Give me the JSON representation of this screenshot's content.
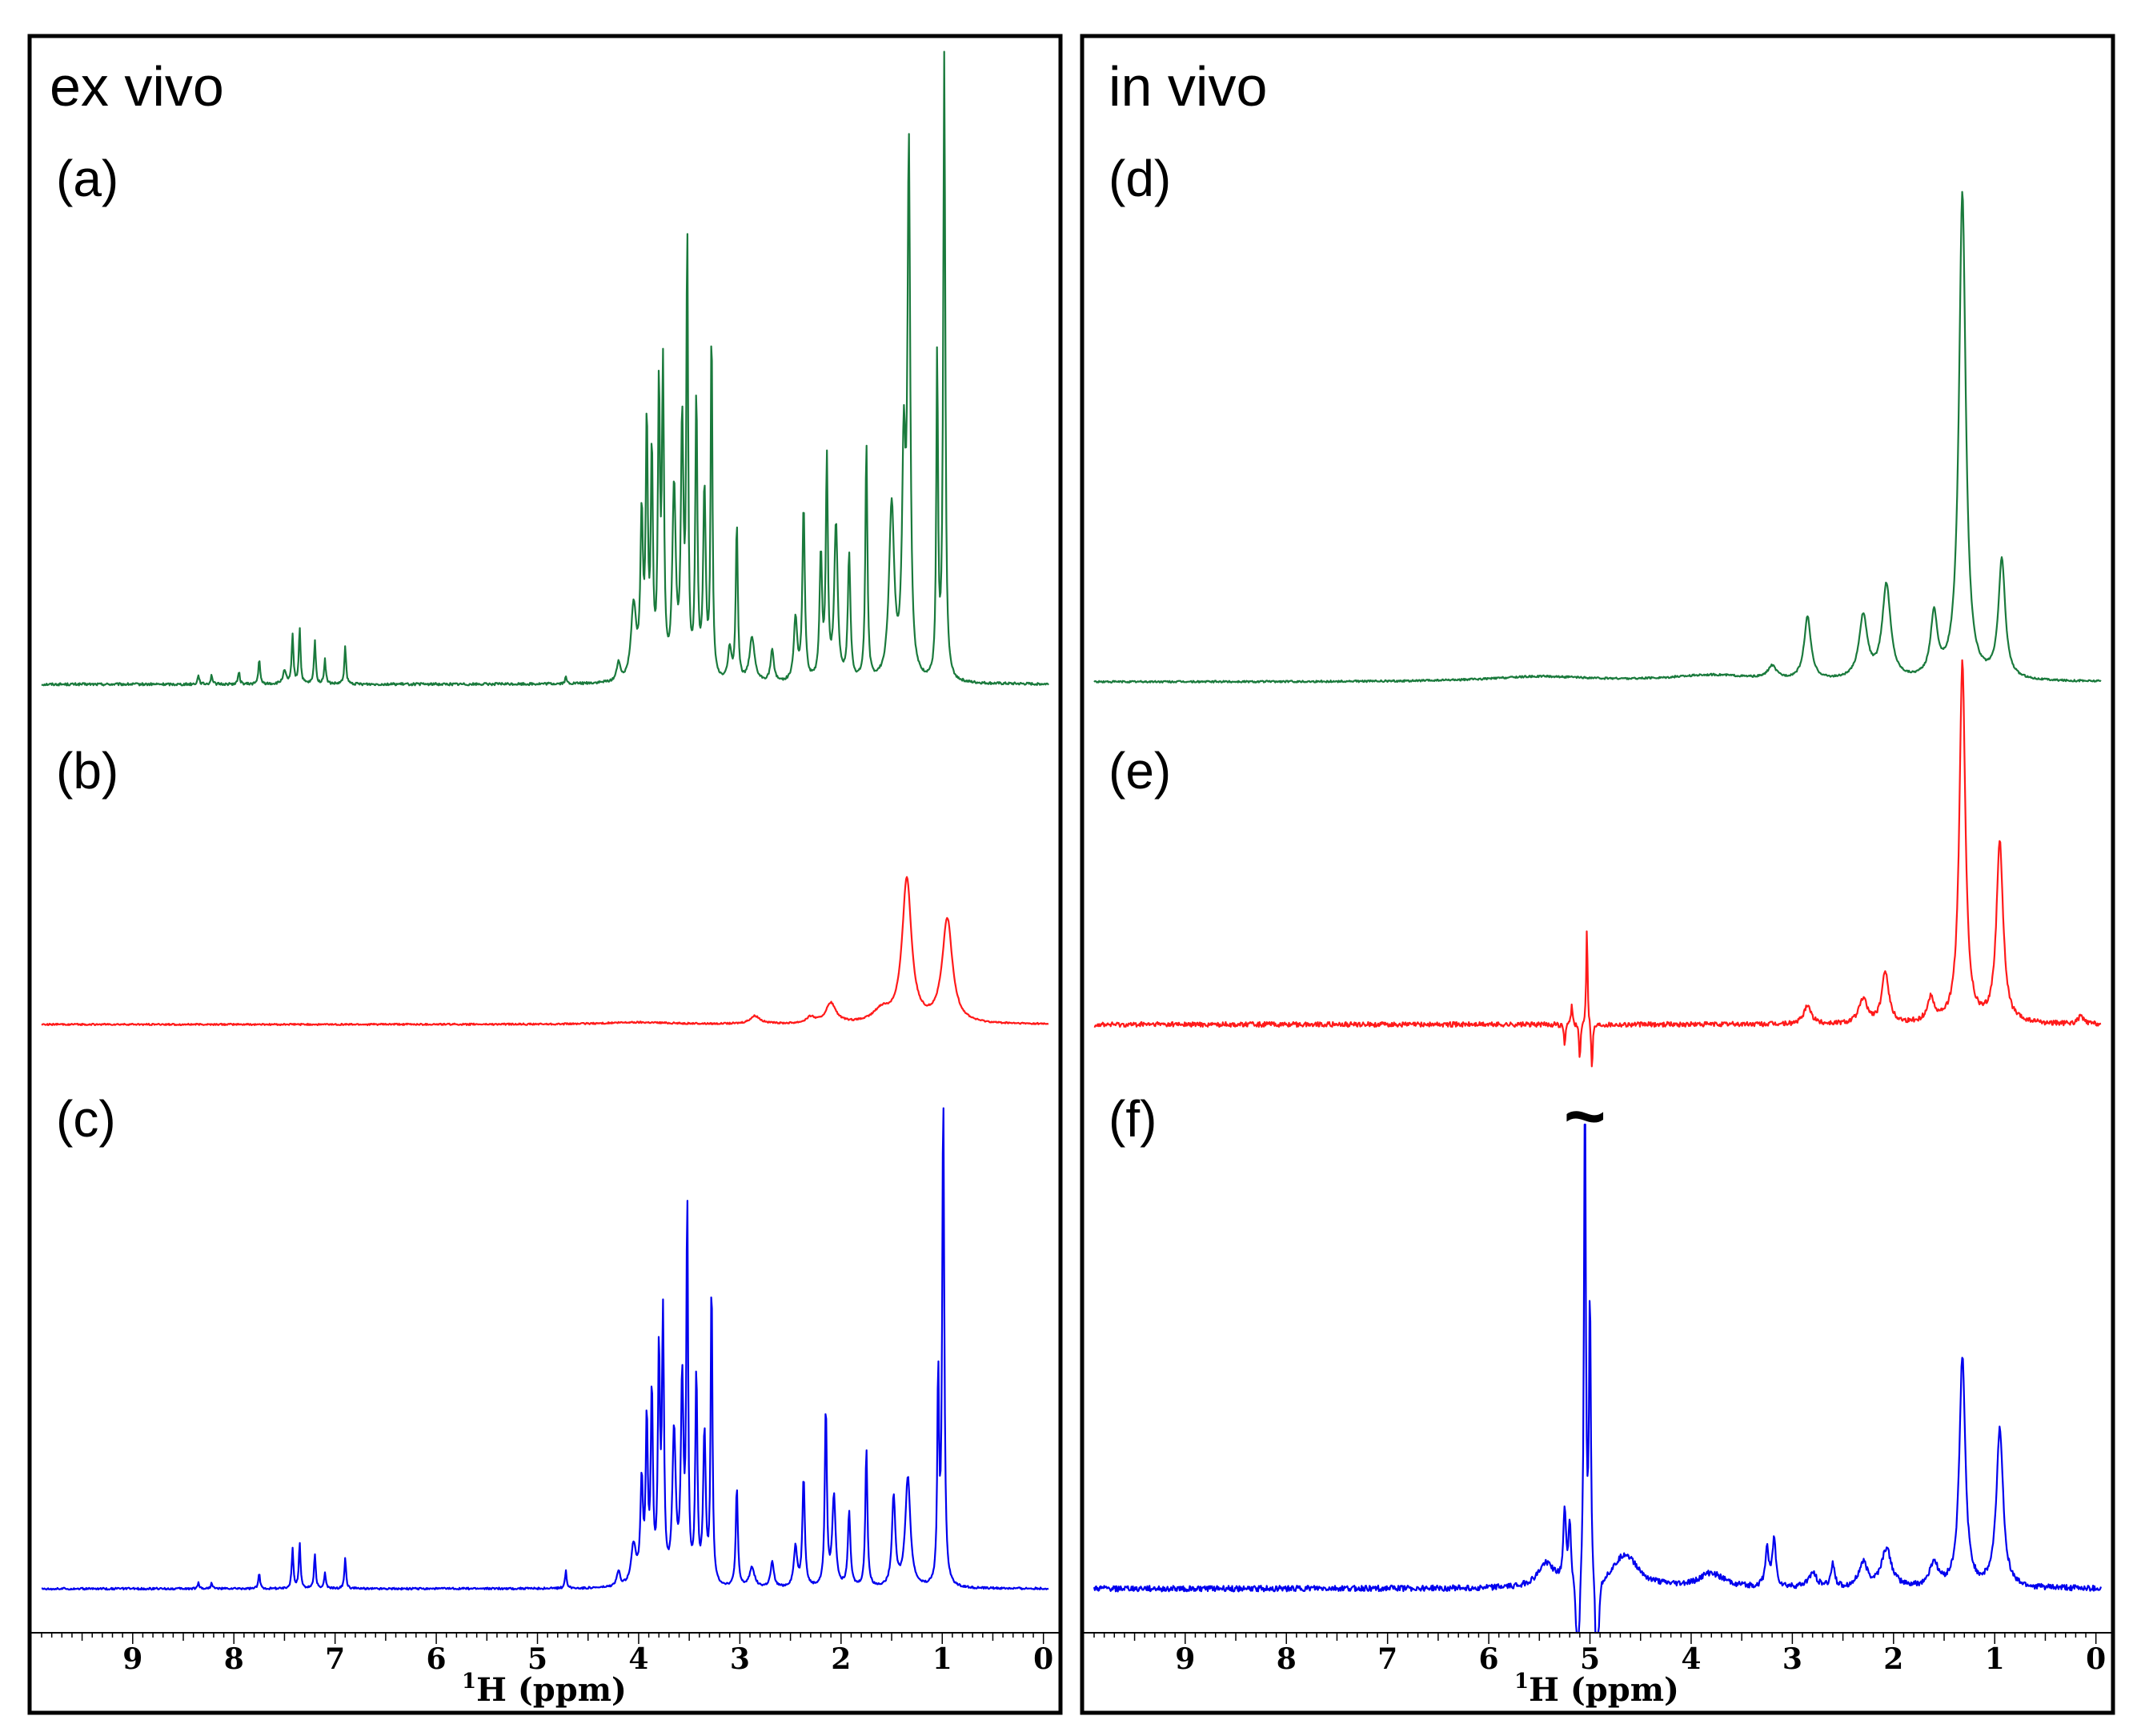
{
  "chart_data": [
    {
      "type": "line",
      "id": "left",
      "heading": "ex vivo",
      "xlabel_nucleus": "1",
      "xlabel_rest": "H (ppm)",
      "xlim": [
        9.9,
        -0.05
      ],
      "x_ticks": [
        "9",
        "8",
        "7",
        "6",
        "5",
        "4",
        "3",
        "2",
        "1",
        "0"
      ],
      "series": [
        {
          "id": "a",
          "label": "(a)",
          "color": "#1a7a3c",
          "noise": 0.002,
          "peaks": [
            [
              0.98,
              1.0,
              0.012
            ],
            [
              1.05,
              0.52,
              0.01
            ],
            [
              1.33,
              0.83,
              0.016
            ],
            [
              1.38,
              0.35,
              0.02
            ],
            [
              1.5,
              0.28,
              0.03
            ],
            [
              1.75,
              0.38,
              0.012
            ],
            [
              1.92,
              0.2,
              0.015
            ],
            [
              2.05,
              0.25,
              0.02
            ],
            [
              2.14,
              0.35,
              0.012
            ],
            [
              2.2,
              0.2,
              0.015
            ],
            [
              2.37,
              0.28,
              0.014
            ],
            [
              2.45,
              0.1,
              0.02
            ],
            [
              2.68,
              0.05,
              0.02
            ],
            [
              2.88,
              0.07,
              0.03
            ],
            [
              3.03,
              0.25,
              0.012
            ],
            [
              3.1,
              0.05,
              0.02
            ],
            [
              3.28,
              0.57,
              0.01
            ],
            [
              3.35,
              0.3,
              0.015
            ],
            [
              3.43,
              0.45,
              0.012
            ],
            [
              3.52,
              0.7,
              0.01
            ],
            [
              3.57,
              0.4,
              0.015
            ],
            [
              3.65,
              0.3,
              0.02
            ],
            [
              3.76,
              0.48,
              0.012
            ],
            [
              3.8,
              0.45,
              0.012
            ],
            [
              3.87,
              0.35,
              0.012
            ],
            [
              3.92,
              0.4,
              0.012
            ],
            [
              3.97,
              0.25,
              0.015
            ],
            [
              4.05,
              0.12,
              0.03
            ],
            [
              4.2,
              0.03,
              0.02
            ],
            [
              4.72,
              0.01,
              0.01
            ],
            [
              6.9,
              0.06,
              0.01
            ],
            [
              7.1,
              0.04,
              0.01
            ],
            [
              7.2,
              0.07,
              0.01
            ],
            [
              7.35,
              0.09,
              0.01
            ],
            [
              7.42,
              0.08,
              0.01
            ],
            [
              7.5,
              0.02,
              0.02
            ],
            [
              7.75,
              0.04,
              0.01
            ],
            [
              7.95,
              0.02,
              0.01
            ],
            [
              8.22,
              0.015,
              0.01
            ],
            [
              8.35,
              0.015,
              0.01
            ]
          ]
        },
        {
          "id": "b",
          "label": "(b)",
          "color": "#ff1a1a",
          "noise": 0.002,
          "peaks": [
            [
              0.95,
              0.26,
              0.06
            ],
            [
              1.35,
              0.36,
              0.055
            ],
            [
              1.6,
              0.03,
              0.1
            ],
            [
              2.1,
              0.05,
              0.06
            ],
            [
              2.3,
              0.015,
              0.05
            ],
            [
              2.85,
              0.02,
              0.06
            ],
            [
              4.0,
              0.005,
              0.4
            ]
          ]
        },
        {
          "id": "c",
          "label": "(c)",
          "color": "#0000ee",
          "noise": 0.002,
          "peaks": [
            [
              0.99,
              0.98,
              0.012
            ],
            [
              1.04,
              0.42,
              0.01
            ],
            [
              1.34,
              0.22,
              0.03
            ],
            [
              1.48,
              0.18,
              0.02
            ],
            [
              1.75,
              0.28,
              0.012
            ],
            [
              1.92,
              0.15,
              0.015
            ],
            [
              2.07,
              0.18,
              0.02
            ],
            [
              2.15,
              0.36,
              0.012
            ],
            [
              2.37,
              0.22,
              0.014
            ],
            [
              2.45,
              0.08,
              0.02
            ],
            [
              2.68,
              0.05,
              0.02
            ],
            [
              2.88,
              0.04,
              0.03
            ],
            [
              3.03,
              0.2,
              0.012
            ],
            [
              3.28,
              0.62,
              0.01
            ],
            [
              3.35,
              0.3,
              0.015
            ],
            [
              3.43,
              0.42,
              0.012
            ],
            [
              3.52,
              0.76,
              0.01
            ],
            [
              3.57,
              0.4,
              0.015
            ],
            [
              3.65,
              0.3,
              0.02
            ],
            [
              3.76,
              0.52,
              0.012
            ],
            [
              3.8,
              0.45,
              0.012
            ],
            [
              3.87,
              0.38,
              0.012
            ],
            [
              3.92,
              0.32,
              0.012
            ],
            [
              3.97,
              0.2,
              0.015
            ],
            [
              4.05,
              0.08,
              0.03
            ],
            [
              4.2,
              0.03,
              0.02
            ],
            [
              4.72,
              0.035,
              0.01
            ],
            [
              6.9,
              0.06,
              0.01
            ],
            [
              7.1,
              0.03,
              0.01
            ],
            [
              7.2,
              0.07,
              0.01
            ],
            [
              7.35,
              0.09,
              0.01
            ],
            [
              7.42,
              0.08,
              0.01
            ],
            [
              7.75,
              0.03,
              0.01
            ],
            [
              8.22,
              0.012,
              0.01
            ],
            [
              8.35,
              0.012,
              0.01
            ]
          ]
        }
      ]
    },
    {
      "type": "line",
      "id": "right",
      "heading": "in vivo",
      "xlabel_nucleus": "1",
      "xlabel_rest": "H (ppm)",
      "xlim": [
        9.9,
        -0.05
      ],
      "x_ticks": [
        "9",
        "8",
        "7",
        "6",
        "5",
        "4",
        "3",
        "2",
        "1",
        "0"
      ],
      "series": [
        {
          "id": "d",
          "label": "(d)",
          "color": "#1a7a3c",
          "noise": 0.0015,
          "peaks": [
            [
              0.93,
              0.19,
              0.04
            ],
            [
              1.32,
              0.78,
              0.04
            ],
            [
              1.6,
              0.1,
              0.04
            ],
            [
              2.07,
              0.15,
              0.05
            ],
            [
              2.3,
              0.1,
              0.05
            ],
            [
              2.85,
              0.1,
              0.04
            ],
            [
              3.2,
              0.02,
              0.05
            ],
            [
              3.8,
              0.01,
              0.5
            ],
            [
              5.5,
              0.008,
              0.6
            ]
          ]
        },
        {
          "id": "e",
          "label": "(e)",
          "color": "#ff1a1a",
          "noise": 0.006,
          "peaks": [
            [
              0.95,
              0.45,
              0.04
            ],
            [
              1.32,
              0.9,
              0.035
            ],
            [
              1.63,
              0.06,
              0.04
            ],
            [
              2.08,
              0.13,
              0.04
            ],
            [
              2.3,
              0.06,
              0.05
            ],
            [
              2.85,
              0.05,
              0.04
            ],
            [
              5.03,
              0.25,
              0.008
            ],
            [
              5.1,
              -0.1,
              0.008
            ],
            [
              4.98,
              -0.12,
              0.008
            ],
            [
              5.18,
              0.05,
              0.01
            ],
            [
              5.25,
              -0.05,
              0.01
            ],
            [
              0.15,
              0.02,
              0.03
            ]
          ]
        },
        {
          "id": "f",
          "label": "(f)",
          "color": "#0000ee",
          "noise": 0.006,
          "break_symbol": "~",
          "peaks": [
            [
              0.95,
              0.33,
              0.04
            ],
            [
              1.32,
              0.48,
              0.035
            ],
            [
              1.6,
              0.05,
              0.05
            ],
            [
              2.07,
              0.08,
              0.06
            ],
            [
              2.3,
              0.05,
              0.05
            ],
            [
              2.6,
              0.05,
              0.02
            ],
            [
              2.8,
              0.03,
              0.05
            ],
            [
              3.18,
              0.1,
              0.02
            ],
            [
              3.25,
              0.08,
              0.02
            ],
            [
              3.8,
              0.03,
              0.15
            ],
            [
              4.65,
              0.07,
              0.15
            ],
            [
              5.43,
              0.05,
              0.1
            ],
            [
              5.25,
              0.15,
              0.015
            ],
            [
              5.2,
              0.12,
              0.015
            ],
            [
              5.05,
              1.1,
              0.01
            ],
            [
              5.0,
              0.6,
              0.01
            ],
            [
              5.12,
              -0.5,
              0.01
            ],
            [
              4.93,
              -0.5,
              0.01
            ]
          ]
        }
      ]
    }
  ]
}
